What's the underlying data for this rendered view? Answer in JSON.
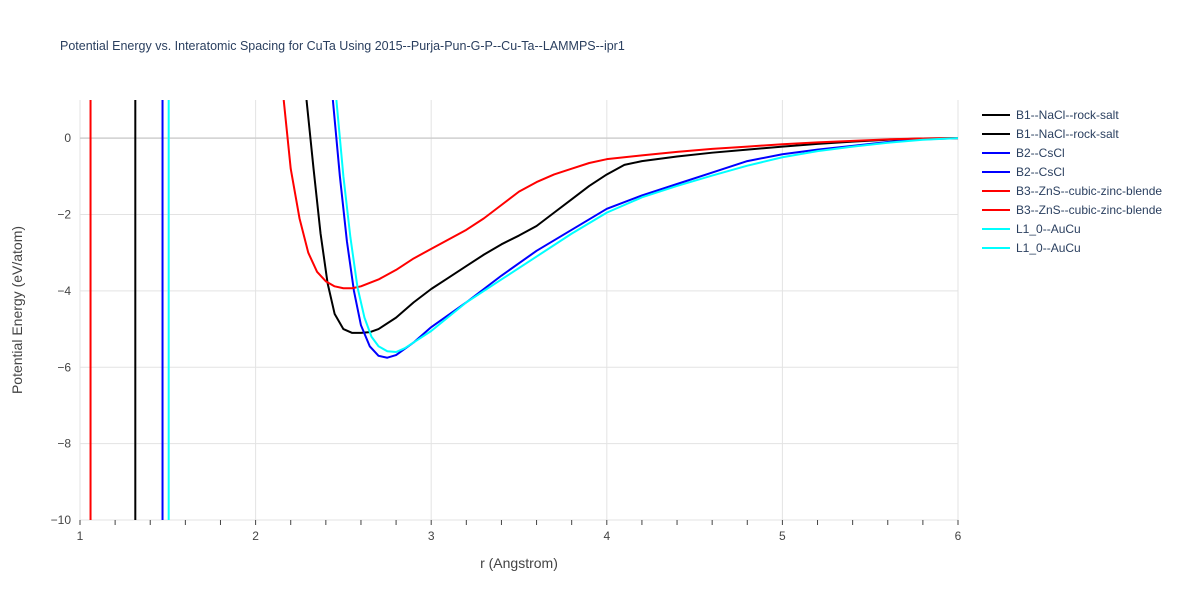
{
  "chart_data": {
    "type": "line",
    "title": "Potential Energy vs. Interatomic Spacing for CuTa Using 2015--Purja-Pun-G-P--Cu-Ta--LAMMPS--ipr1",
    "xlabel": "r (Angstrom)",
    "ylabel": "Potential Energy (eV/atom)",
    "xlim": [
      1,
      6
    ],
    "ylim": [
      -10,
      1
    ],
    "xticks": [
      1,
      2,
      3,
      4,
      5,
      6
    ],
    "yticks": [
      0,
      -2,
      -4,
      -6,
      -8,
      -10
    ],
    "ytick_labels": [
      "0",
      "−2",
      "−4",
      "−6",
      "−8",
      "−10"
    ],
    "grid": true,
    "legend_position": "right",
    "series": [
      {
        "name": "B1--NaCl--rock-salt",
        "color": "#000000",
        "x": [
          1.315,
          1.315
        ],
        "y": [
          -10,
          1
        ]
      },
      {
        "name": "B1--NaCl--rock-salt",
        "color": "#000000",
        "x": [
          2.29,
          2.33,
          2.37,
          2.41,
          2.45,
          2.5,
          2.55,
          2.6,
          2.65,
          2.7,
          2.8,
          2.9,
          3.0,
          3.1,
          3.2,
          3.3,
          3.4,
          3.5,
          3.6,
          3.7,
          3.8,
          3.9,
          4.0,
          4.1,
          4.2,
          4.4,
          4.6,
          4.8,
          5.0,
          5.2,
          5.4,
          5.6,
          5.8,
          6.0
        ],
        "y": [
          1.0,
          -0.8,
          -2.5,
          -3.8,
          -4.6,
          -5.0,
          -5.1,
          -5.1,
          -5.08,
          -5.0,
          -4.7,
          -4.3,
          -3.95,
          -3.65,
          -3.35,
          -3.05,
          -2.78,
          -2.55,
          -2.3,
          -1.95,
          -1.6,
          -1.25,
          -0.95,
          -0.7,
          -0.6,
          -0.48,
          -0.38,
          -0.3,
          -0.22,
          -0.15,
          -0.09,
          -0.04,
          -0.01,
          0.0
        ]
      },
      {
        "name": "B2--CsCl",
        "color": "#0000ff",
        "x": [
          1.47,
          1.47
        ],
        "y": [
          -10,
          1
        ]
      },
      {
        "name": "B2--CsCl",
        "color": "#0000ff",
        "x": [
          2.44,
          2.48,
          2.52,
          2.56,
          2.6,
          2.65,
          2.7,
          2.75,
          2.8,
          2.9,
          3.0,
          3.2,
          3.4,
          3.6,
          3.8,
          4.0,
          4.2,
          4.4,
          4.6,
          4.8,
          5.0,
          5.2,
          5.4,
          5.6,
          5.8,
          6.0
        ],
        "y": [
          1.0,
          -1.0,
          -2.7,
          -4.0,
          -4.9,
          -5.45,
          -5.7,
          -5.75,
          -5.68,
          -5.35,
          -4.95,
          -4.3,
          -3.6,
          -2.95,
          -2.4,
          -1.85,
          -1.5,
          -1.2,
          -0.9,
          -0.6,
          -0.42,
          -0.3,
          -0.2,
          -0.1,
          -0.03,
          0.0
        ]
      },
      {
        "name": "B3--ZnS--cubic-zinc-blende",
        "color": "#ff0000",
        "x": [
          1.06,
          1.06
        ],
        "y": [
          -10,
          1
        ]
      },
      {
        "name": "B3--ZnS--cubic-zinc-blende",
        "color": "#ff0000",
        "x": [
          2.16,
          2.2,
          2.25,
          2.3,
          2.35,
          2.4,
          2.45,
          2.5,
          2.55,
          2.6,
          2.7,
          2.8,
          2.9,
          3.0,
          3.1,
          3.2,
          3.3,
          3.4,
          3.5,
          3.6,
          3.7,
          3.8,
          3.9,
          4.0,
          4.2,
          4.4,
          4.6,
          4.8,
          5.0,
          5.2,
          5.4,
          5.6,
          5.8,
          6.0
        ],
        "y": [
          1.0,
          -0.8,
          -2.1,
          -3.0,
          -3.5,
          -3.75,
          -3.88,
          -3.93,
          -3.93,
          -3.88,
          -3.7,
          -3.45,
          -3.15,
          -2.9,
          -2.65,
          -2.4,
          -2.1,
          -1.75,
          -1.4,
          -1.15,
          -0.95,
          -0.8,
          -0.65,
          -0.55,
          -0.45,
          -0.36,
          -0.28,
          -0.22,
          -0.16,
          -0.11,
          -0.07,
          -0.03,
          -0.01,
          0.0
        ]
      },
      {
        "name": "L1_0--AuCu",
        "color": "#00ffff",
        "x": [
          1.505,
          1.505
        ],
        "y": [
          -10,
          1
        ]
      },
      {
        "name": "L1_0--AuCu",
        "color": "#00ffff",
        "x": [
          2.46,
          2.5,
          2.54,
          2.58,
          2.62,
          2.66,
          2.7,
          2.75,
          2.8,
          2.85,
          2.9,
          3.0,
          3.2,
          3.4,
          3.6,
          3.8,
          4.0,
          4.2,
          4.4,
          4.6,
          4.8,
          5.0,
          5.2,
          5.4,
          5.6,
          5.8,
          6.0
        ],
        "y": [
          1.0,
          -1.0,
          -2.6,
          -3.9,
          -4.7,
          -5.2,
          -5.45,
          -5.58,
          -5.6,
          -5.5,
          -5.35,
          -5.05,
          -4.3,
          -3.7,
          -3.1,
          -2.5,
          -1.95,
          -1.55,
          -1.25,
          -0.98,
          -0.72,
          -0.5,
          -0.34,
          -0.22,
          -0.12,
          -0.04,
          0.0
        ]
      }
    ]
  }
}
